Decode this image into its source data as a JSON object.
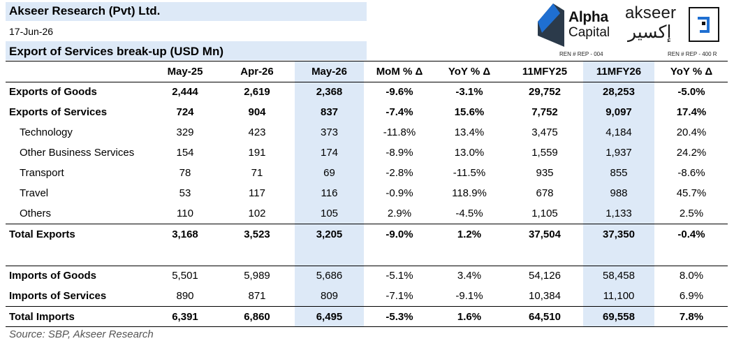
{
  "header": {
    "company": "Akseer Research (Pvt) Ltd.",
    "date": "17-Jun-26",
    "title": "Export of Services break-up (USD Mn)",
    "ref_alpha": "REN # REP - 004",
    "ref_akseer": "REN # REP - 400 R"
  },
  "logos": {
    "alpha_word1": "Alpha",
    "alpha_word2": "Capital",
    "akseer_en": "akseer",
    "akseer_ar": "إكسير",
    "brand_blue": "#1f6fd1",
    "brand_dark": "#2b3a4a"
  },
  "table": {
    "columns": [
      "May-25",
      "Apr-26",
      "May-26",
      "MoM % Δ",
      "YoY % Δ",
      "11MFY25",
      "11MFY26",
      "YoY % Δ"
    ],
    "rows": [
      {
        "label": "Exports of Goods",
        "values": [
          "2,444",
          "2,619",
          "2,368",
          "-9.6%",
          "-3.1%",
          "29,752",
          "28,253",
          "-5.0%"
        ]
      },
      {
        "label": "Exports of Services",
        "values": [
          "724",
          "904",
          "837",
          "-7.4%",
          "15.6%",
          "7,752",
          "9,097",
          "17.4%"
        ]
      },
      {
        "label": "Technology",
        "values": [
          "329",
          "423",
          "373",
          "-11.8%",
          "13.4%",
          "3,475",
          "4,184",
          "20.4%"
        ]
      },
      {
        "label": "Other Business Services",
        "values": [
          "154",
          "191",
          "174",
          "-8.9%",
          "13.0%",
          "1,559",
          "1,937",
          "24.2%"
        ]
      },
      {
        "label": "Transport",
        "values": [
          "78",
          "71",
          "69",
          "-2.8%",
          "-11.5%",
          "935",
          "855",
          "-8.6%"
        ]
      },
      {
        "label": "Travel",
        "values": [
          "53",
          "117",
          "116",
          "-0.9%",
          "118.9%",
          "678",
          "988",
          "45.7%"
        ]
      },
      {
        "label": "Others",
        "values": [
          "110",
          "102",
          "105",
          "2.9%",
          "-4.5%",
          "1,105",
          "1,133",
          "2.5%"
        ]
      },
      {
        "label": "Total Exports",
        "values": [
          "3,168",
          "3,523",
          "3,205",
          "-9.0%",
          "1.2%",
          "37,504",
          "37,350",
          "-0.4%"
        ]
      },
      {
        "label": "Imports of Goods",
        "values": [
          "5,501",
          "5,989",
          "5,686",
          "-5.1%",
          "3.4%",
          "54,126",
          "58,458",
          "8.0%"
        ]
      },
      {
        "label": "Imports of Services",
        "values": [
          "890",
          "871",
          "809",
          "-7.1%",
          "-9.1%",
          "10,384",
          "11,100",
          "6.9%"
        ]
      },
      {
        "label": "Total Imports",
        "values": [
          "6,391",
          "6,860",
          "6,495",
          "-5.3%",
          "1.6%",
          "64,510",
          "69,558",
          "7.8%"
        ]
      }
    ]
  },
  "source": "Source: SBP, Akseer Research"
}
